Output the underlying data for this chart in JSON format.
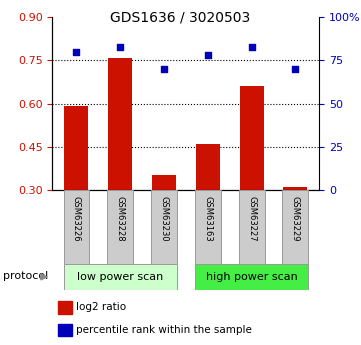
{
  "title": "GDS1636 / 3020503",
  "samples": [
    "GSM63226",
    "GSM63228",
    "GSM63230",
    "GSM63163",
    "GSM63227",
    "GSM63229"
  ],
  "log2_ratio": [
    0.59,
    0.76,
    0.35,
    0.46,
    0.66,
    0.31
  ],
  "percentile_rank": [
    80,
    83,
    70,
    78,
    83,
    70
  ],
  "ylim_left": [
    0.3,
    0.9
  ],
  "ylim_right": [
    0,
    100
  ],
  "yticks_left": [
    0.3,
    0.45,
    0.6,
    0.75,
    0.9
  ],
  "yticks_right": [
    0,
    25,
    50,
    75,
    100
  ],
  "ytick_labels_right": [
    "0",
    "25",
    "50",
    "75",
    "100%"
  ],
  "hlines": [
    0.75,
    0.6,
    0.45,
    0.3
  ],
  "bar_color": "#cc1100",
  "scatter_color": "#0000bb",
  "protocol_groups": [
    {
      "label": "low power scan",
      "indices": [
        0,
        1,
        2
      ],
      "color": "#ccffcc"
    },
    {
      "label": "high power scan",
      "indices": [
        3,
        4,
        5
      ],
      "color": "#44ee44"
    }
  ],
  "protocol_label": "protocol",
  "legend_bar_label": "log2 ratio",
  "legend_scatter_label": "percentile rank within the sample",
  "bar_width": 0.55,
  "label_box_color": "#cccccc",
  "label_box_edge": "#999999",
  "title_fontsize": 10,
  "tick_fontsize": 8,
  "sample_fontsize": 6,
  "legend_fontsize": 7.5,
  "protocol_fontsize": 8
}
